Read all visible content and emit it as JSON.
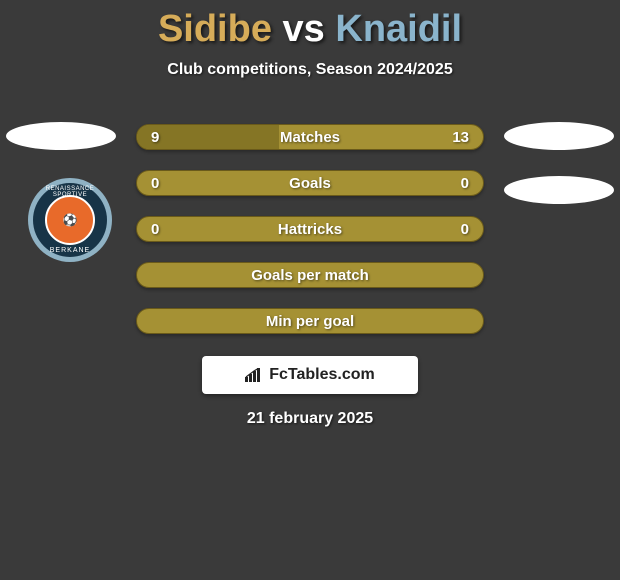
{
  "title": {
    "player1": "Sidibe",
    "vs": "vs",
    "player2": "Knaidil",
    "player1_color": "#d6ac59",
    "vs_color": "#ffffff",
    "player2_color": "#8ab4cc",
    "fontsize": 38
  },
  "subtitle": "Club competitions, Season 2024/2025",
  "background_color": "#3a3a3a",
  "player_photos": {
    "ellipse_color": "#ffffff",
    "ellipse_width": 110,
    "ellipse_height": 28
  },
  "club_badge": {
    "outer_color": "#8fb2c4",
    "ring_color": "#173447",
    "inner_color": "#e86a2a",
    "top_text": "RENAISSANCE SPORTIVE",
    "bottom_text": "BERKANE",
    "center_glyph": "⚽"
  },
  "stats": {
    "bar_bg": "#a59134",
    "bar_fill_darker": "#857525",
    "bar_border": "#6a5a1a",
    "text_color": "#ffffff",
    "fontsize": 15,
    "rows": [
      {
        "label": "Matches",
        "left": "9",
        "right": "13",
        "fill_left_pct": 41
      },
      {
        "label": "Goals",
        "left": "0",
        "right": "0",
        "fill_left_pct": 0
      },
      {
        "label": "Hattricks",
        "left": "0",
        "right": "0",
        "fill_left_pct": 0
      },
      {
        "label": "Goals per match",
        "left": "",
        "right": "",
        "fill_left_pct": 0
      },
      {
        "label": "Min per goal",
        "left": "",
        "right": "",
        "fill_left_pct": 0
      }
    ]
  },
  "brand": {
    "text": "FcTables.com",
    "bg": "#ffffff",
    "text_color": "#222222"
  },
  "date": "21 february 2025"
}
